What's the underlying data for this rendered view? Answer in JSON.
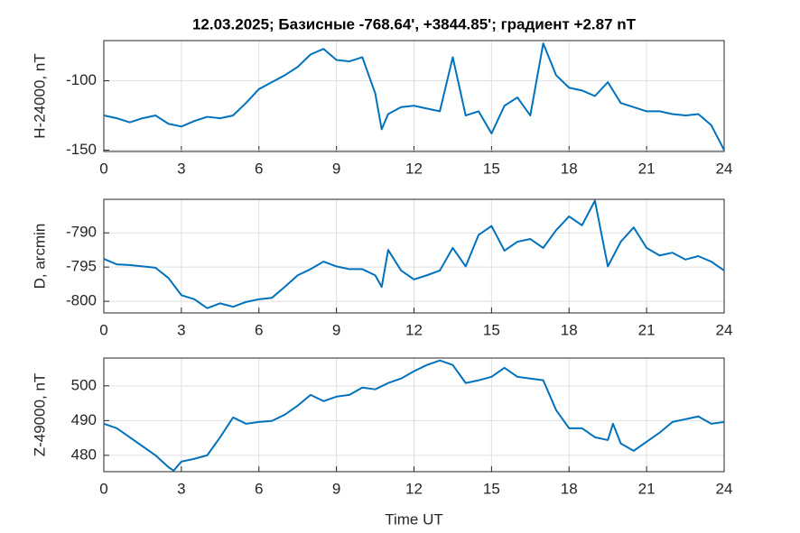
{
  "chart_data": [
    {
      "type": "line",
      "title": "12.03.2025;  Базисные  -768.64', +3844.85'; градиент +2.87 nT",
      "ylabel": "H-24000, nT",
      "x": [
        0,
        0.5,
        1,
        1.5,
        2,
        2.5,
        3,
        3.5,
        4,
        4.5,
        5,
        5.5,
        6,
        6.5,
        7,
        7.5,
        8,
        8.5,
        9,
        9.5,
        10,
        10.5,
        10.75,
        11,
        11.5,
        12,
        12.5,
        13,
        13.5,
        14,
        14.5,
        15,
        15.5,
        16,
        16.5,
        17,
        17.5,
        18,
        18.5,
        19,
        19.5,
        20,
        20.5,
        21,
        21.5,
        22,
        22.5,
        23,
        23.5,
        24
      ],
      "series": [
        {
          "name": "H",
          "color": "#0072bd",
          "values": [
            -125,
            -127,
            -130,
            -127,
            -125,
            -131,
            -133,
            -129,
            -126,
            -127,
            -125,
            -116,
            -106,
            -101,
            -96,
            -90,
            -81,
            -77,
            -85,
            -86,
            -83,
            -109,
            -135,
            -124,
            -119,
            -118,
            -120,
            -122,
            -83,
            -125,
            -122,
            -138,
            -118,
            -112,
            -125,
            -73,
            -96,
            -105,
            -107,
            -111,
            -101,
            -116,
            -119,
            -122,
            -122,
            -124,
            -125,
            -124,
            -132,
            -150
          ]
        }
      ],
      "xlim": [
        0,
        24
      ],
      "xticks": [
        0,
        3,
        6,
        9,
        12,
        15,
        18,
        21,
        24
      ],
      "ylim": [
        -151,
        -71
      ],
      "yticks": [
        -150,
        -100
      ],
      "grid": true
    },
    {
      "type": "line",
      "ylabel": "D, arcmin",
      "x": [
        0,
        0.5,
        1,
        1.5,
        2,
        2.5,
        3,
        3.5,
        4,
        4.5,
        5,
        5.5,
        6,
        6.5,
        7,
        7.5,
        8,
        8.5,
        9,
        9.5,
        10,
        10.5,
        10.75,
        11,
        11.5,
        12,
        12.5,
        13,
        13.5,
        14,
        14.5,
        15,
        15.5,
        16,
        16.5,
        17,
        17.5,
        18,
        18.5,
        19,
        19.5,
        20,
        20.5,
        21,
        21.5,
        22,
        22.5,
        23,
        23.5,
        24
      ],
      "series": [
        {
          "name": "D",
          "color": "#0072bd",
          "values": [
            -793.8,
            -794.6,
            -794.7,
            -794.9,
            -795.1,
            -796.6,
            -799.1,
            -799.7,
            -801.0,
            -800.3,
            -800.8,
            -800.1,
            -799.7,
            -799.5,
            -797.9,
            -796.2,
            -795.3,
            -794.2,
            -794.9,
            -795.3,
            -795.3,
            -796.2,
            -797.9,
            -792.5,
            -795.5,
            -796.8,
            -796.2,
            -795.5,
            -792.2,
            -794.9,
            -790.3,
            -789.0,
            -792.6,
            -791.3,
            -790.9,
            -792.2,
            -789.6,
            -787.6,
            -788.9,
            -785.3,
            -794.9,
            -791.3,
            -789.2,
            -792.2,
            -793.3,
            -792.9,
            -793.9,
            -793.4,
            -794.2,
            -795.5
          ]
        }
      ],
      "xlim": [
        0,
        24
      ],
      "xticks": [
        0,
        3,
        6,
        9,
        12,
        15,
        18,
        21,
        24
      ],
      "ylim": [
        -801.7,
        -785.1
      ],
      "yticks": [
        -800,
        -795,
        -790
      ],
      "grid": true
    },
    {
      "type": "line",
      "ylabel": "Z-49000, nT",
      "xlabel": "Time UT",
      "x": [
        0,
        0.5,
        1,
        1.5,
        2,
        2.5,
        2.7,
        3,
        3.5,
        4,
        4.5,
        5,
        5.5,
        6,
        6.5,
        7,
        7.5,
        8,
        8.5,
        9,
        9.5,
        10,
        10.5,
        11,
        11.5,
        12,
        12.5,
        13,
        13.5,
        14,
        14.5,
        15,
        15.5,
        16,
        16.5,
        17,
        17.5,
        18,
        18.5,
        19,
        19.5,
        19.7,
        20,
        20.5,
        21,
        21.5,
        22,
        22.5,
        23,
        23.5,
        24
      ],
      "series": [
        {
          "name": "Z",
          "color": "#0072bd",
          "values": [
            489.1,
            487.8,
            485.2,
            482.6,
            480.0,
            476.6,
            475.6,
            478.2,
            479.0,
            480.0,
            485.2,
            490.9,
            489.1,
            489.6,
            489.9,
            491.7,
            494.3,
            497.4,
            495.6,
            496.9,
            497.4,
            499.5,
            499.0,
            500.8,
            502.1,
            504.2,
            506.0,
            507.3,
            506.0,
            500.8,
            501.6,
            502.6,
            505.2,
            502.6,
            502.1,
            501.6,
            493.0,
            487.8,
            487.8,
            485.2,
            484.4,
            489.1,
            483.4,
            481.3,
            483.9,
            486.5,
            489.6,
            490.4,
            491.2,
            489.1,
            489.6
          ]
        }
      ],
      "xlim": [
        0,
        24
      ],
      "xticks": [
        0,
        3,
        6,
        9,
        12,
        15,
        18,
        21,
        24
      ],
      "ylim": [
        475.3,
        508
      ],
      "yticks": [
        480,
        490,
        500
      ],
      "grid": true
    }
  ]
}
